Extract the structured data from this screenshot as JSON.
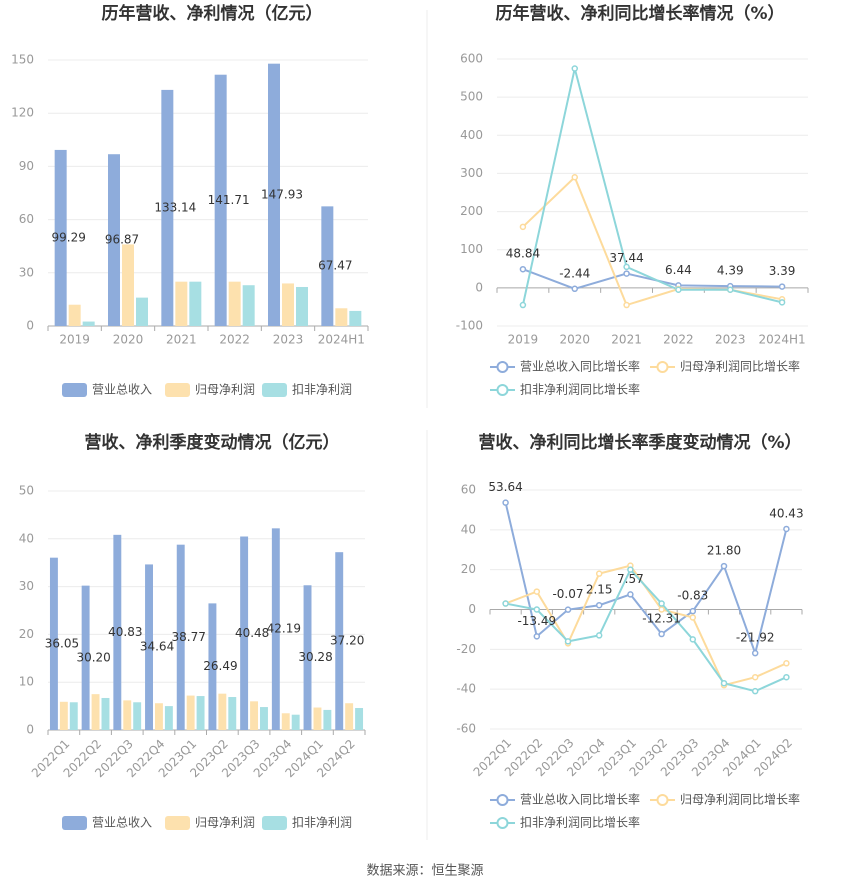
{
  "chart_data": [
    {
      "type": "bar",
      "title": "历年营收、净利情况（亿元）",
      "categories": [
        "2019",
        "2020",
        "2021",
        "2022",
        "2023",
        "2024H1"
      ],
      "series": [
        {
          "name": "营业总收入",
          "color": "#8eacdb",
          "values": [
            99.29,
            96.87,
            133.14,
            141.71,
            147.93,
            67.47
          ],
          "value_labels": [
            "99.29",
            "96.87",
            "133.14",
            "141.71",
            "147.93",
            "67.47"
          ]
        },
        {
          "name": "归母净利润",
          "color": "#fde1ae",
          "values": [
            12,
            46,
            25,
            25,
            24,
            10
          ]
        },
        {
          "name": "扣非净利润",
          "color": "#a7dfe3",
          "values": [
            2.5,
            16,
            25,
            23,
            22,
            8.5
          ]
        }
      ],
      "ylim": [
        0,
        150
      ],
      "yticks": [
        0,
        30,
        60,
        90,
        120,
        150
      ],
      "grid": true
    },
    {
      "type": "line",
      "title": "历年营收、净利同比增长率情况（%）",
      "categories": [
        "2019",
        "2020",
        "2021",
        "2022",
        "2023",
        "2024H1"
      ],
      "series": [
        {
          "name": "营业总收入同比增长率",
          "color": "#8eacdb",
          "values": [
            48.84,
            -2.44,
            37.44,
            6.44,
            4.39,
            3.39
          ],
          "value_labels": [
            "48.84",
            "-2.44",
            "37.44",
            "6.44",
            "4.39",
            "3.39"
          ]
        },
        {
          "name": "归母净利润同比增长率",
          "color": "#fddb9c",
          "values": [
            160,
            290,
            -45,
            -3,
            -5,
            -30
          ]
        },
        {
          "name": "扣非净利润同比增长率",
          "color": "#8dd6da",
          "values": [
            -45,
            575,
            55,
            -5,
            -5,
            -38
          ]
        }
      ],
      "ylim": [
        -100,
        600
      ],
      "yticks": [
        -100,
        0,
        100,
        200,
        300,
        400,
        500,
        600
      ],
      "grid": true
    },
    {
      "type": "bar",
      "title": "营收、净利季度变动情况（亿元）",
      "categories": [
        "2022Q1",
        "2022Q2",
        "2022Q3",
        "2022Q4",
        "2023Q1",
        "2023Q2",
        "2023Q3",
        "2023Q4",
        "2024Q1",
        "2024Q2"
      ],
      "series": [
        {
          "name": "营业总收入",
          "color": "#8eacdb",
          "values": [
            36.05,
            30.2,
            40.83,
            34.64,
            38.77,
            26.49,
            40.48,
            42.19,
            30.28,
            37.2
          ],
          "value_labels": [
            "36.05",
            "30.20",
            "40.83",
            "34.64",
            "38.77",
            "26.49",
            "40.48",
            "42.19",
            "30.28",
            "37.20"
          ]
        },
        {
          "name": "归母净利润",
          "color": "#fde1ae",
          "values": [
            5.9,
            7.5,
            6.2,
            5.6,
            7.2,
            7.6,
            6.0,
            3.5,
            4.7,
            5.6
          ]
        },
        {
          "name": "扣非净利润",
          "color": "#a7dfe3",
          "values": [
            5.8,
            6.7,
            5.8,
            5.0,
            7.1,
            6.9,
            4.8,
            3.2,
            4.2,
            4.6
          ]
        }
      ],
      "ylim": [
        0,
        50
      ],
      "yticks": [
        0,
        10,
        20,
        30,
        40,
        50
      ],
      "grid": true
    },
    {
      "type": "line",
      "title": "营收、净利同比增长率季度变动情况（%）",
      "categories": [
        "2022Q1",
        "2022Q2",
        "2022Q3",
        "2022Q4",
        "2023Q1",
        "2023Q2",
        "2023Q3",
        "2023Q4",
        "2024Q1",
        "2024Q2"
      ],
      "series": [
        {
          "name": "营业总收入同比增长率",
          "color": "#8eacdb",
          "values": [
            53.64,
            -13.49,
            -0.07,
            2.15,
            7.57,
            -12.31,
            -0.83,
            21.8,
            -21.92,
            40.43
          ],
          "value_labels": [
            "53.64",
            "-13.49",
            "-0.07",
            "2.15",
            "7.57",
            "-12.31",
            "-0.83",
            "21.80",
            "-21.92",
            "40.43"
          ]
        },
        {
          "name": "归母净利润同比增长率",
          "color": "#fddb9c",
          "values": [
            3,
            9,
            -17,
            18,
            22,
            0,
            -4,
            -38,
            -34,
            -27
          ]
        },
        {
          "name": "扣非净利润同比增长率",
          "color": "#8dd6da",
          "values": [
            3,
            0,
            -16,
            -13,
            20,
            3,
            -15,
            -37,
            -41,
            -34
          ]
        }
      ],
      "ylim": [
        -60,
        60
      ],
      "yticks": [
        -60,
        -40,
        -20,
        0,
        20,
        40,
        60
      ],
      "grid": true
    }
  ],
  "source": "数据来源：恒生聚源"
}
